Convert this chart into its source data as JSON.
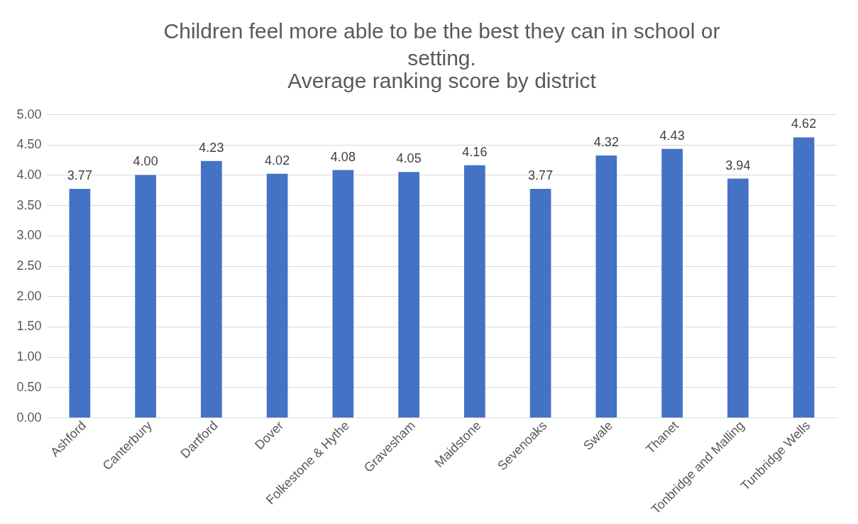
{
  "chart_data": {
    "type": "bar",
    "title": "Children feel more able to be the best they can in school or setting.",
    "subtitle": "Average ranking score by district",
    "categories": [
      "Ashford",
      "Canterbury",
      "Dartford",
      "Dover",
      "Folkestone & Hythe",
      "Gravesham",
      "Maidstone",
      "Sevenoaks",
      "Swale",
      "Thanet",
      "Tonbridge and Malling",
      "Tunbridge Wells"
    ],
    "values": [
      3.77,
      4.0,
      4.23,
      4.02,
      4.08,
      4.05,
      4.16,
      3.77,
      4.32,
      4.43,
      3.94,
      4.62
    ],
    "value_labels": [
      "3.77",
      "4.00",
      "4.23",
      "4.02",
      "4.08",
      "4.05",
      "4.16",
      "3.77",
      "4.32",
      "4.43",
      "3.94",
      "4.62"
    ],
    "color": "#4472c4",
    "ylim": [
      0,
      5
    ],
    "yticks": [
      {
        "value": 0,
        "label": "0.00"
      },
      {
        "value": 0.5,
        "label": "0.50"
      },
      {
        "value": 1,
        "label": "1.00"
      },
      {
        "value": 1.5,
        "label": "1.50"
      },
      {
        "value": 2,
        "label": "2.00"
      },
      {
        "value": 2.5,
        "label": "2.50"
      },
      {
        "value": 3,
        "label": "3.00"
      },
      {
        "value": 3.5,
        "label": "3.50"
      },
      {
        "value": 4,
        "label": "4.00"
      },
      {
        "value": 4.5,
        "label": "4.50"
      },
      {
        "value": 5,
        "label": "5.00"
      }
    ],
    "grid": "y"
  }
}
